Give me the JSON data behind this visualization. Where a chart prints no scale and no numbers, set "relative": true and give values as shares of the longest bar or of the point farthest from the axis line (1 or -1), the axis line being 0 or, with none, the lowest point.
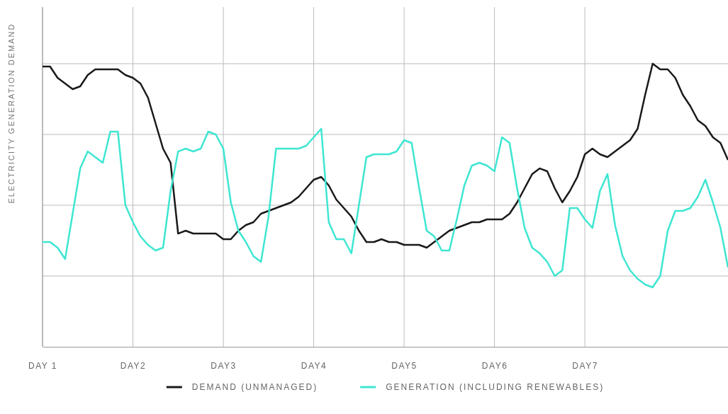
{
  "chart_data": {
    "type": "line",
    "relative": true,
    "ylabel": "ELECTRICITY GENERATION DEMAND",
    "categories": [
      "DAY 1",
      null,
      null,
      null,
      null,
      null,
      null,
      null,
      null,
      null,
      null,
      null,
      "DAY2",
      null,
      null,
      null,
      null,
      null,
      null,
      null,
      null,
      null,
      null,
      null,
      "DAY3",
      null,
      null,
      null,
      null,
      null,
      null,
      null,
      null,
      null,
      null,
      null,
      "DAY4",
      null,
      null,
      null,
      null,
      null,
      null,
      null,
      null,
      null,
      null,
      null,
      "DAY5",
      null,
      null,
      null,
      null,
      null,
      null,
      null,
      null,
      null,
      null,
      null,
      "DAY6",
      null,
      null,
      null,
      null,
      null,
      null,
      null,
      null,
      null,
      null,
      null,
      "DAY7",
      null,
      null,
      null,
      null,
      null,
      null,
      null,
      null,
      null,
      null,
      null,
      null,
      null,
      null,
      null,
      null,
      null,
      null,
      null
    ],
    "grid": true,
    "legend": "bottom",
    "line_style": "solid",
    "marker": "none",
    "series": [
      {
        "name": "DEMAND (UNMANAGED)",
        "color": "#1a1a1a",
        "values": [
          0.99,
          0.99,
          0.95,
          0.93,
          0.91,
          0.92,
          0.96,
          0.98,
          0.98,
          0.98,
          0.98,
          0.96,
          0.95,
          0.93,
          0.88,
          0.79,
          0.7,
          0.65,
          0.4,
          0.41,
          0.4,
          0.4,
          0.4,
          0.4,
          0.38,
          0.38,
          0.41,
          0.43,
          0.44,
          0.47,
          0.48,
          0.49,
          0.5,
          0.51,
          0.53,
          0.56,
          0.59,
          0.6,
          0.57,
          0.52,
          0.49,
          0.46,
          0.41,
          0.37,
          0.37,
          0.38,
          0.37,
          0.37,
          0.36,
          0.36,
          0.36,
          0.35,
          0.37,
          0.39,
          0.41,
          0.42,
          0.43,
          0.44,
          0.44,
          0.45,
          0.45,
          0.45,
          0.47,
          0.51,
          0.56,
          0.61,
          0.63,
          0.62,
          0.56,
          0.51,
          0.55,
          0.6,
          0.68,
          0.7,
          0.68,
          0.67,
          0.69,
          0.71,
          0.73,
          0.77,
          0.89,
          1.0,
          0.98,
          0.98,
          0.95,
          0.89,
          0.85,
          0.8,
          0.78,
          0.74,
          0.72,
          0.66
        ]
      },
      {
        "name": "GENERATION (INCLUDING RENEWABLES)",
        "color": "#3ee6d2",
        "values": [
          0.37,
          0.37,
          0.35,
          0.31,
          0.47,
          0.63,
          0.69,
          0.67,
          0.65,
          0.76,
          0.76,
          0.5,
          0.44,
          0.39,
          0.36,
          0.34,
          0.35,
          0.55,
          0.69,
          0.7,
          0.69,
          0.7,
          0.76,
          0.75,
          0.7,
          0.51,
          0.41,
          0.37,
          0.32,
          0.3,
          0.46,
          0.7,
          0.7,
          0.7,
          0.7,
          0.71,
          0.74,
          0.77,
          0.44,
          0.38,
          0.38,
          0.33,
          0.5,
          0.67,
          0.68,
          0.68,
          0.68,
          0.69,
          0.73,
          0.72,
          0.56,
          0.41,
          0.39,
          0.34,
          0.34,
          0.45,
          0.57,
          0.64,
          0.65,
          0.64,
          0.62,
          0.74,
          0.72,
          0.56,
          0.42,
          0.35,
          0.33,
          0.3,
          0.25,
          0.27,
          0.49,
          0.49,
          0.45,
          0.42,
          0.55,
          0.61,
          0.43,
          0.32,
          0.27,
          0.24,
          0.22,
          0.21,
          0.25,
          0.41,
          0.48,
          0.48,
          0.49,
          0.53,
          0.59,
          0.51,
          0.42,
          0.28
        ]
      }
    ]
  }
}
